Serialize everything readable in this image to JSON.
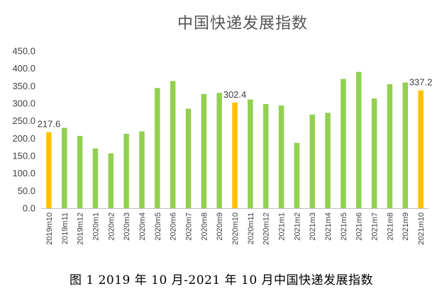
{
  "chart_data": {
    "type": "bar",
    "title": "中国快递发展指数",
    "caption": "图 1   2019 年 10 月-2021 年 10 月中国快递发展指数",
    "categories": [
      "2019m10",
      "2019m11",
      "2019m12",
      "2020m1",
      "2020m2",
      "2020m3",
      "2020m4",
      "2020m5",
      "2020m6",
      "2020m7",
      "2020m8",
      "2020m9",
      "2020m10",
      "2020m11",
      "2020m12",
      "2021m1",
      "2021m2",
      "2021m3",
      "2021m4",
      "2021m5",
      "2021m6",
      "2021m7",
      "2021m8",
      "2021m9",
      "2021m10"
    ],
    "values": [
      217.6,
      230,
      207,
      171,
      157,
      213,
      220,
      344,
      364,
      285,
      327,
      330,
      302.4,
      311,
      298,
      294,
      187,
      268,
      273,
      370,
      390,
      314,
      355,
      360,
      337.2
    ],
    "highlighted": [
      0,
      12,
      24
    ],
    "data_labels": {
      "0": "217.6",
      "12": "302.4",
      "24": "337.2"
    },
    "ylim": [
      0,
      450
    ],
    "yticks": [
      "0.0",
      "50.0",
      "100.0",
      "150.0",
      "200.0",
      "250.0",
      "300.0",
      "350.0",
      "400.0",
      "450.0"
    ],
    "xlabel": "",
    "ylabel": "",
    "grid": false,
    "colors": {
      "bar": "#92D050",
      "highlight": "#FFC000",
      "axis": "#BFBFBF",
      "text": "#404040"
    }
  }
}
